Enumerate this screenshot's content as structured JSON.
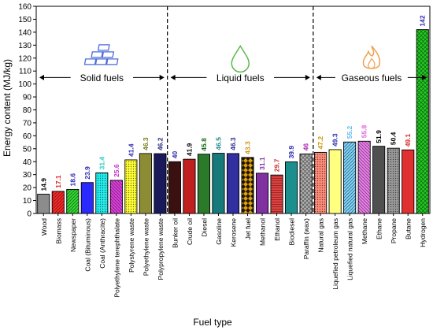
{
  "chart_data": {
    "type": "bar",
    "xlabel": "Fuel type",
    "ylabel": "Energy content (MJ/kg)",
    "ylim": [
      0,
      160
    ],
    "yticks": [
      0,
      10,
      20,
      30,
      40,
      50,
      60,
      70,
      80,
      90,
      100,
      110,
      120,
      130,
      140,
      150,
      160
    ],
    "grid": false,
    "categories": [
      "Wood",
      "Biomass",
      "Newspaper",
      "Coal (Bituminous)",
      "Coal (Anthracite)",
      "Polyethylene terephthalate",
      "Polystyrene waste",
      "Polyethylene waste",
      "Polypropylene waste",
      "Bunker oil",
      "Crude oil",
      "Diesel",
      "Gasoline",
      "Kerosene",
      "Jet fuel",
      "Methanol",
      "Ethanol",
      "Biodiesel",
      "Paraffin (wax)",
      "Natural gas",
      "Liquefied petroleum gas",
      "Liquefied natural gas",
      "Methane",
      "Ethane",
      "Propane",
      "Butane",
      "Hydrogen"
    ],
    "values": [
      14.9,
      17.1,
      18.6,
      23.9,
      31.4,
      25.6,
      41.4,
      46.3,
      46.2,
      40,
      41.9,
      45.8,
      46.5,
      46.3,
      43.3,
      31.1,
      29.7,
      39.9,
      46,
      47.2,
      49.3,
      55.2,
      55.8,
      51.9,
      50.4,
      49.1,
      142
    ],
    "value_labels": [
      "14.9",
      "17.1",
      "18.6",
      "23.9",
      "31.4",
      "25.6",
      "41.4",
      "46.3",
      "46.2",
      "40",
      "41.9",
      "45.8",
      "46.5",
      "46.3",
      "43.3",
      "31.1",
      "29.7",
      "39.9",
      "46",
      "47.2",
      "49.3",
      "55.2",
      "55.8",
      "51.9",
      "50.4",
      "49.1",
      "142"
    ],
    "bar_colors": [
      "#8c8c8c",
      "#ff2a2a",
      "#33dd33",
      "#2a2aff",
      "#22eeee",
      "#e040e0",
      "#ffff33",
      "#9e9e3a",
      "#1a1a5a",
      "#3a1010",
      "#c02020",
      "#2a7a2a",
      "#1a8a8a",
      "#3030a0",
      "#e0a010",
      "#8030a0",
      "#e04040",
      "#20a0a0",
      "#b0b0b0",
      "#ff8c7a",
      "#ffff80",
      "#80d8ff",
      "#ee80ee",
      "#505050",
      "#9a9a9a",
      "#e03030",
      "#22cc22"
    ],
    "label_colors": [
      "#000000",
      "#dd2222",
      "#2a2ab0",
      "#2a2ab0",
      "#22cccc",
      "#cc33cc",
      "#2a2ab0",
      "#7a7a20",
      "#2a2a80",
      "#2a2ab0",
      "#000000",
      "#1a6a1a",
      "#1a8a8a",
      "#2a2a90",
      "#d09010",
      "#8030a0",
      "#cc3030",
      "#2a2ab0",
      "#aa22aa",
      "#cc9900",
      "#2a2ab0",
      "#66bbee",
      "#dd66dd",
      "#000000",
      "#000000",
      "#dd2222",
      "#2a2ab0"
    ],
    "patterns": [
      "solid",
      "hatch-right",
      "hatch-right",
      "solid",
      "dots",
      "hatch-left",
      "dots",
      "dots-fine",
      "solid",
      "solid",
      "solid",
      "solid",
      "dots-fine",
      "solid",
      "diamond",
      "solid",
      "hatch-horizontal",
      "dots-fine",
      "crosshatch",
      "dots",
      "solid",
      "hatch-right",
      "hatch-left",
      "solid",
      "dots",
      "solid",
      "crosshatch"
    ],
    "sections": [
      {
        "label": "Solid fuels",
        "start_index": 0,
        "end_index": 8,
        "icon": "coal-stack-icon",
        "icon_color": "#4a6ad8"
      },
      {
        "label": "Liquid fuels",
        "start_index": 9,
        "end_index": 18,
        "icon": "droplet-icon",
        "icon_color": "#5ab84a"
      },
      {
        "label": "Gaseous fuels",
        "start_index": 19,
        "end_index": 26,
        "icon": "flame-icon",
        "icon_color": "#f0a050"
      }
    ],
    "section_arrow_value": 105
  }
}
